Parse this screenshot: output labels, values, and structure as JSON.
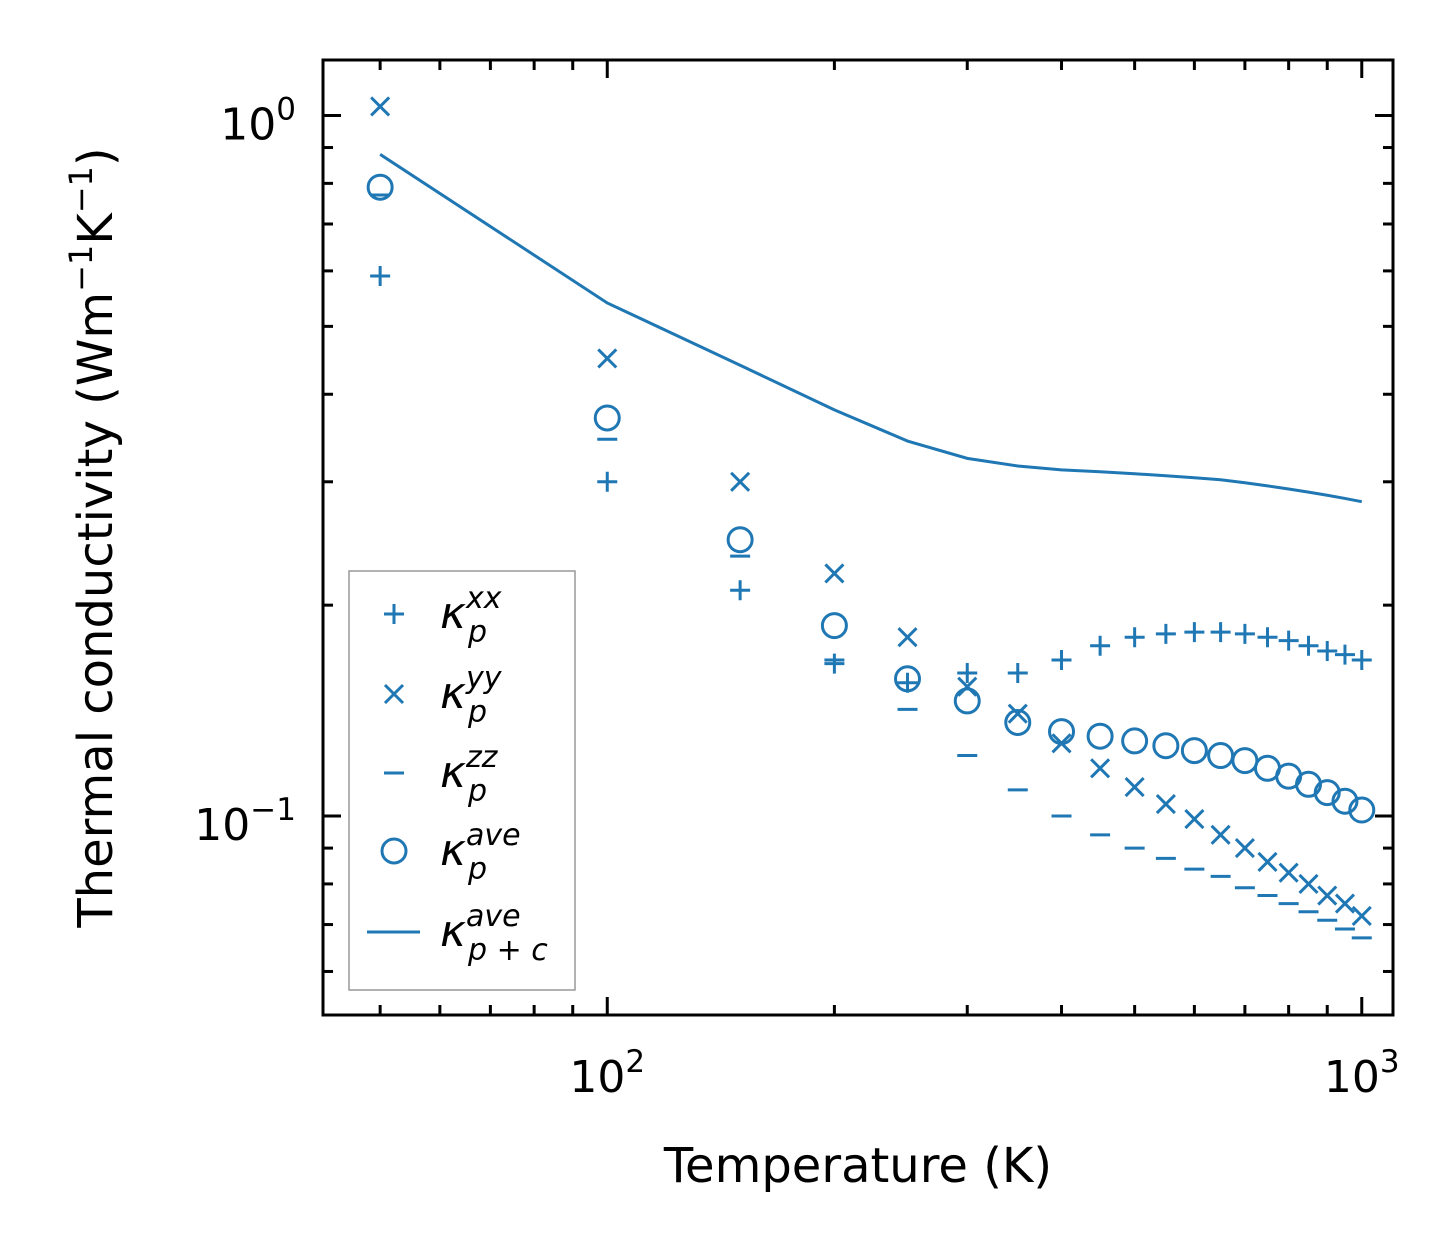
{
  "chart_data": {
    "type": "scatter",
    "x_scale": "log",
    "y_scale": "log",
    "xlabel": "Temperature (K)",
    "ylabel": "Thermal conductivity (Wm",
    "ylabel_unit_sup1": "−1",
    "ylabel_unit_mid": "K",
    "ylabel_unit_sup2": "−1",
    "ylabel_unit_end": ")",
    "xlim": [
      42,
      1100
    ],
    "ylim": [
      0.052,
      1.2
    ],
    "x_ticks": [
      {
        "value": 100,
        "base": "10",
        "exp": "2"
      },
      {
        "value": 1000,
        "base": "10",
        "exp": "3"
      }
    ],
    "y_ticks": [
      {
        "value": 0.1,
        "base": "10",
        "exp": "−1"
      },
      {
        "value": 1.0,
        "base": "10",
        "exp": "0"
      }
    ],
    "color": "#1f77b4",
    "x": [
      50,
      100,
      150,
      200,
      250,
      300,
      350,
      400,
      450,
      500,
      550,
      600,
      650,
      700,
      750,
      800,
      850,
      900,
      950,
      1000
    ],
    "series": [
      {
        "name": "xx",
        "legend_base": "κ",
        "legend_sub": "p",
        "legend_sup": "xx",
        "marker": "plus",
        "values": [
          0.59,
          0.3,
          0.21,
          0.165,
          0.155,
          0.16,
          0.16,
          0.167,
          0.175,
          0.18,
          0.182,
          0.183,
          0.183,
          0.182,
          0.18,
          0.178,
          0.175,
          0.172,
          0.17,
          0.167
        ]
      },
      {
        "name": "yy",
        "legend_base": "κ",
        "legend_sub": "p",
        "legend_sup": "yy",
        "marker": "x",
        "values": [
          1.03,
          0.45,
          0.3,
          0.222,
          0.18,
          0.153,
          0.14,
          0.127,
          0.117,
          0.11,
          0.104,
          0.099,
          0.094,
          0.09,
          0.086,
          0.083,
          0.08,
          0.077,
          0.075,
          0.072
        ]
      },
      {
        "name": "zz",
        "legend_base": "κ",
        "legend_sub": "p",
        "legend_sup": "zz",
        "marker": "hline",
        "values": [
          0.77,
          0.345,
          0.235,
          0.167,
          0.142,
          0.122,
          0.109,
          0.1,
          0.094,
          0.09,
          0.087,
          0.084,
          0.082,
          0.079,
          0.077,
          0.075,
          0.073,
          0.071,
          0.069,
          0.067
        ]
      },
      {
        "name": "ave",
        "legend_base": "κ",
        "legend_sub": "p",
        "legend_sup": "ave",
        "marker": "circle",
        "values": [
          0.79,
          0.37,
          0.248,
          0.187,
          0.157,
          0.146,
          0.136,
          0.132,
          0.13,
          0.128,
          0.126,
          0.124,
          0.122,
          0.12,
          0.117,
          0.114,
          0.111,
          0.108,
          0.105,
          0.102
        ]
      },
      {
        "name": "p+c ave",
        "legend_base": "κ",
        "legend_sub": "p + c",
        "legend_sup": "ave",
        "marker": "line",
        "values": [
          0.88,
          0.54,
          0.44,
          0.38,
          0.343,
          0.324,
          0.316,
          0.312,
          0.31,
          0.308,
          0.306,
          0.304,
          0.302,
          0.299,
          0.296,
          0.293,
          0.29,
          0.287,
          0.284,
          0.281
        ]
      }
    ]
  }
}
